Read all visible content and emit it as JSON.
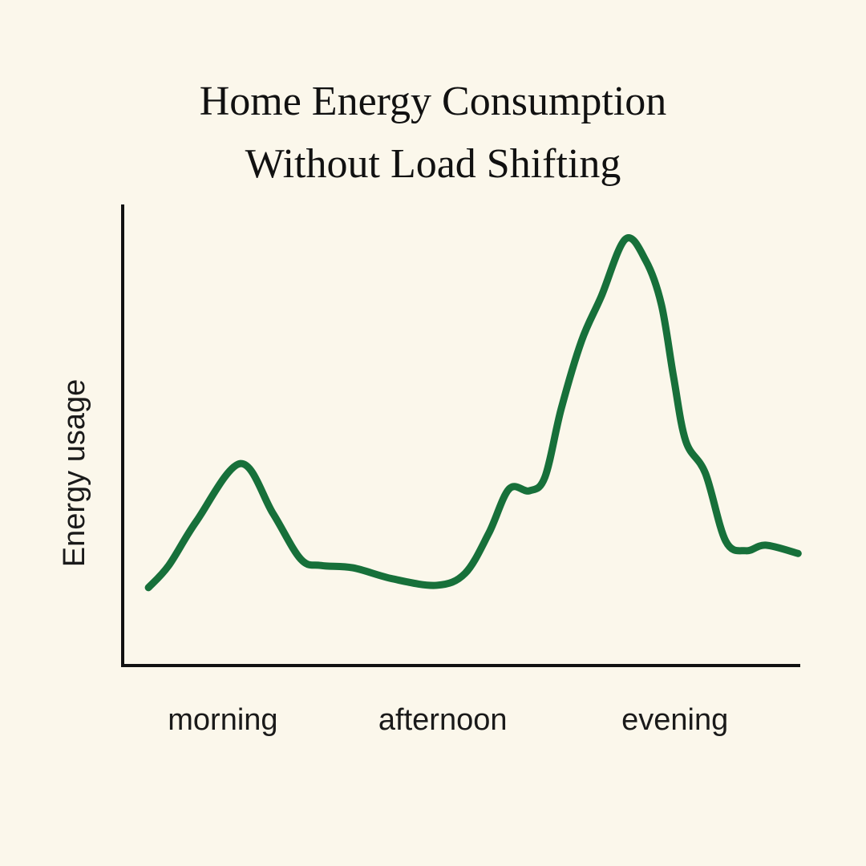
{
  "chart_data": {
    "type": "line",
    "title": "Home Energy Consumption Without Load Shifting",
    "y_label": "Energy usage",
    "color": "#17703a",
    "xlim": [
      0,
      100
    ],
    "ylim": [
      0,
      100
    ],
    "xticks": [
      {
        "value": 14.8,
        "label": "morning"
      },
      {
        "value": 47.3,
        "label": "afternoon"
      },
      {
        "value": 81.6,
        "label": "evening"
      }
    ],
    "x": [
      3.8,
      6.8,
      10.9,
      17.4,
      22.2,
      26.3,
      29.3,
      34.0,
      39.9,
      46.4,
      50.6,
      54.1,
      57.1,
      60.1,
      62.4,
      64.8,
      67.8,
      70.7,
      74.3,
      77.3,
      79.6,
      81.4,
      83.2,
      86.1,
      89.1,
      92.1,
      95.0,
      99.8
    ],
    "values": [
      16.9,
      21.7,
      31.3,
      43.8,
      33.0,
      23.1,
      21.7,
      21.2,
      18.8,
      17.4,
      20.0,
      28.7,
      38.3,
      37.9,
      40.9,
      55.7,
      70.4,
      80.0,
      92.5,
      87.8,
      78.3,
      62.6,
      48.7,
      41.7,
      27.0,
      24.9,
      26.1,
      24.3
    ]
  }
}
